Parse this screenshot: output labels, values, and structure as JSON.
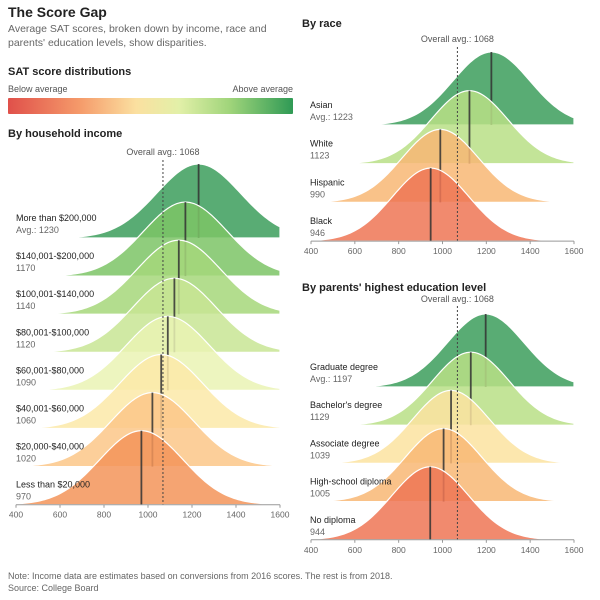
{
  "header": {
    "title": "The Score Gap",
    "subtitle": "Average SAT scores, broken down by income, race and parents' education levels, show disparities."
  },
  "legend": {
    "title": "SAT score distributions",
    "low_label": "Below average",
    "high_label": "Above average"
  },
  "footer": {
    "note": "Note: Income data are estimates based on conversions from 2016 scores. The rest is from 2018.",
    "source": "Source: College Board"
  },
  "chart_data": [
    {
      "type": "area",
      "id": "income",
      "title": "By household income",
      "xlim": [
        400,
        1600
      ],
      "xticks": [
        400,
        600,
        800,
        1000,
        1200,
        1400,
        1600
      ],
      "overall_avg": 1068,
      "overall_avg_label": "Overall avg.: 1068",
      "series": [
        {
          "name": "More than $200,000",
          "avg": 1230,
          "avg_label": "Avg.: 1230",
          "color": "#3c9e5c"
        },
        {
          "name": "$140,001-$200,000",
          "avg": 1170,
          "avg_label": "1170",
          "color": "#7cc466"
        },
        {
          "name": "$100,001-$140,000",
          "avg": 1140,
          "avg_label": "1140",
          "color": "#a6d77a"
        },
        {
          "name": "$80,001-$100,000",
          "avg": 1120,
          "avg_label": "1120",
          "color": "#c8e594"
        },
        {
          "name": "$60,001-$80,000",
          "avg": 1090,
          "avg_label": "1090",
          "color": "#eaf3b4"
        },
        {
          "name": "$40,001-$60,000",
          "avg": 1060,
          "avg_label": "1060",
          "color": "#fbe9a8"
        },
        {
          "name": "$20,000-$40,000",
          "avg": 1020,
          "avg_label": "1020",
          "color": "#fbc788"
        },
        {
          "name": "Less than $20,000",
          "avg": 970,
          "avg_label": "970",
          "color": "#f39459"
        }
      ]
    },
    {
      "type": "area",
      "id": "race",
      "title": "By race",
      "xlim": [
        400,
        1600
      ],
      "xticks": [
        400,
        600,
        800,
        1000,
        1200,
        1400,
        1600
      ],
      "overall_avg": 1068,
      "overall_avg_label": "Overall avg.: 1068",
      "series": [
        {
          "name": "Asian",
          "avg": 1223,
          "avg_label": "Avg.: 1223",
          "color": "#3c9e5c"
        },
        {
          "name": "White",
          "avg": 1123,
          "avg_label": "1123",
          "color": "#b8df86"
        },
        {
          "name": "Hispanic",
          "avg": 990,
          "avg_label": "990",
          "color": "#f8b774"
        },
        {
          "name": "Black",
          "avg": 946,
          "avg_label": "946",
          "color": "#ee7555"
        }
      ]
    },
    {
      "type": "area",
      "id": "education",
      "title": "By parents' highest education level",
      "xlim": [
        400,
        1600
      ],
      "xticks": [
        400,
        600,
        800,
        1000,
        1200,
        1400,
        1600
      ],
      "overall_avg": 1068,
      "overall_avg_label": "Overall avg.: 1068",
      "series": [
        {
          "name": "Graduate degree",
          "avg": 1197,
          "avg_label": "Avg.: 1197",
          "color": "#3c9e5c"
        },
        {
          "name": "Bachelor's degree",
          "avg": 1129,
          "avg_label": "1129",
          "color": "#b8df86"
        },
        {
          "name": "Associate degree",
          "avg": 1039,
          "avg_label": "1039",
          "color": "#fbe3a0"
        },
        {
          "name": "High-school diploma",
          "avg": 1005,
          "avg_label": "1005",
          "color": "#f8b774"
        },
        {
          "name": "No diploma",
          "avg": 944,
          "avg_label": "944",
          "color": "#ee7555"
        }
      ]
    }
  ]
}
